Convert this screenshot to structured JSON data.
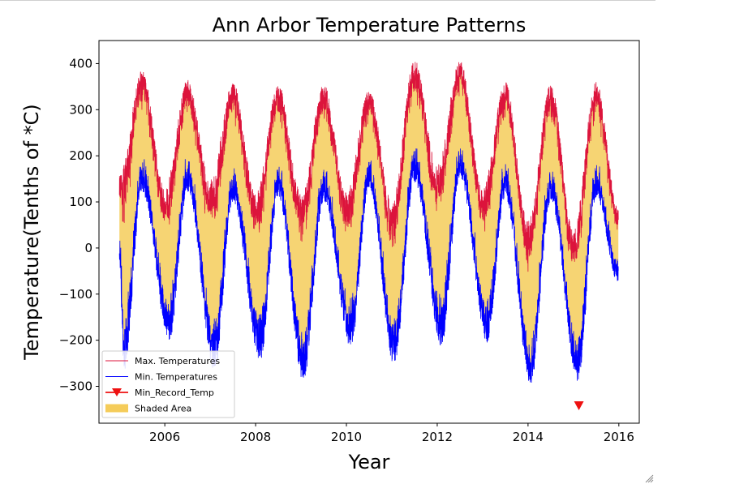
{
  "chart_data": {
    "type": "line",
    "title": "Ann Arbor Temperature Patterns",
    "xlabel": "Year",
    "ylabel": "Temperature(Tenths of *C)",
    "xlim": [
      2004.55,
      2016.45
    ],
    "ylim": [
      -380,
      450
    ],
    "x_ticks": [
      2006,
      2008,
      2010,
      2012,
      2014,
      2016
    ],
    "x_tick_labels": [
      "2006",
      "2008",
      "2010",
      "2012",
      "2014",
      "2016"
    ],
    "y_ticks": [
      400,
      300,
      200,
      100,
      0,
      -100,
      -200,
      -300
    ],
    "y_tick_labels": [
      "400",
      "300",
      "200",
      "100",
      "0",
      "−100",
      "−200",
      "−300"
    ],
    "grid": false,
    "legend_position": "lower-left",
    "x_range": [
      2005.0,
      2015.99
    ],
    "series": [
      {
        "name": "Max. Temperatures",
        "color": "#dc143c",
        "monthly_peaks": [
          [
            2005.0,
            160
          ],
          [
            2005.5,
            385
          ],
          [
            2006.0,
            130
          ],
          [
            2006.5,
            365
          ],
          [
            2007.0,
            150
          ],
          [
            2007.5,
            360
          ],
          [
            2008.0,
            120
          ],
          [
            2008.5,
            355
          ],
          [
            2009.0,
            120
          ],
          [
            2009.5,
            355
          ],
          [
            2010.0,
            120
          ],
          [
            2010.5,
            345
          ],
          [
            2011.0,
            100
          ],
          [
            2011.5,
            408
          ],
          [
            2012.0,
            180
          ],
          [
            2012.5,
            408
          ],
          [
            2013.0,
            130
          ],
          [
            2013.5,
            360
          ],
          [
            2014.0,
            60
          ],
          [
            2014.5,
            355
          ],
          [
            2015.0,
            40
          ],
          [
            2015.5,
            360
          ],
          [
            2015.99,
            90
          ]
        ]
      },
      {
        "name": "Min. Temperatures",
        "color": "#0000ff",
        "monthly_troughs": [
          [
            2005.0,
            -30
          ],
          [
            2005.1,
            -275
          ],
          [
            2005.5,
            120
          ],
          [
            2006.1,
            -200
          ],
          [
            2006.5,
            120
          ],
          [
            2007.1,
            -270
          ],
          [
            2007.5,
            100
          ],
          [
            2008.1,
            -245
          ],
          [
            2008.5,
            110
          ],
          [
            2009.05,
            -290
          ],
          [
            2009.5,
            100
          ],
          [
            2010.1,
            -215
          ],
          [
            2010.5,
            130
          ],
          [
            2011.05,
            -255
          ],
          [
            2011.5,
            140
          ],
          [
            2012.1,
            -215
          ],
          [
            2012.5,
            150
          ],
          [
            2013.1,
            -205
          ],
          [
            2013.5,
            110
          ],
          [
            2014.05,
            -300
          ],
          [
            2014.5,
            100
          ],
          [
            2015.1,
            -290
          ],
          [
            2015.5,
            110
          ],
          [
            2015.99,
            -80
          ]
        ]
      },
      {
        "name": "Min_Record_Temp",
        "color": "#ee1111",
        "points": [
          [
            2015.12,
            -343
          ]
        ]
      },
      {
        "name": "Shaded Area",
        "color": "#f5cc5a"
      }
    ]
  }
}
